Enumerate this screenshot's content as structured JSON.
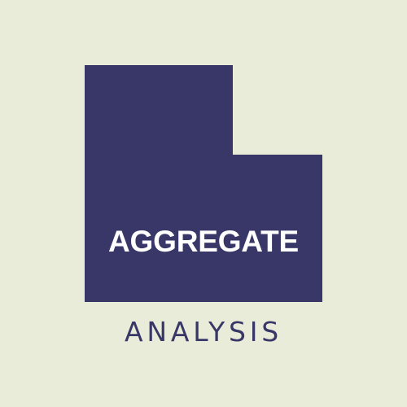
{
  "logo": {
    "primary_text": "AGGREGATE",
    "secondary_text": "ANALYSIS"
  },
  "colors": {
    "background": "#E9ECD8",
    "shape": "#383767",
    "primary_text": "#FFFFFF",
    "secondary_text": "#383767"
  },
  "icons": {
    "mark": "stepped-block-logo-icon"
  }
}
